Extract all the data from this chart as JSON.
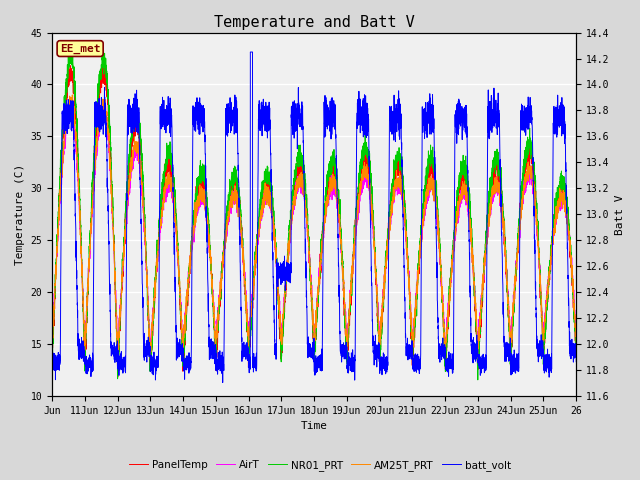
{
  "title": "Temperature and Batt V",
  "xlabel": "Time",
  "ylabel_left": "Temperature (C)",
  "ylabel_right": "Batt V",
  "ylim_left": [
    10,
    45
  ],
  "ylim_right": [
    11.6,
    14.4
  ],
  "x_start": 10,
  "x_end": 26,
  "x_ticks": [
    10,
    11,
    12,
    13,
    14,
    15,
    16,
    17,
    18,
    19,
    20,
    21,
    22,
    23,
    24,
    25,
    26
  ],
  "x_tick_labels": [
    "Jun",
    "11Jun",
    "12Jun",
    "13Jun",
    "14Jun",
    "15Jun",
    "16Jun",
    "17Jun",
    "18Jun",
    "19Jun",
    "20Jun",
    "21Jun",
    "22Jun",
    "23Jun",
    "24Jun",
    "25Jun",
    "26"
  ],
  "station_label": "EE_met",
  "station_label_color": "#800000",
  "station_box_edgecolor": "#800000",
  "station_box_facecolor": "#FFFF99",
  "background_color": "#D8D8D8",
  "plot_bg_color": "#F0F0F0",
  "colors": {
    "PanelTemp": "#FF0000",
    "AirT": "#FF00FF",
    "NR01_PRT": "#00CC00",
    "AM25T_PRT": "#FF8800",
    "batt_volt": "#0000FF"
  },
  "legend_entries": [
    "PanelTemp",
    "AirT",
    "NR01_PRT",
    "AM25T_PRT",
    "batt_volt"
  ],
  "title_fontsize": 11,
  "label_fontsize": 8,
  "tick_fontsize": 7,
  "grid_color": "#FFFFFF",
  "grid_linewidth": 1.0,
  "yticks_left": [
    10,
    15,
    20,
    25,
    30,
    35,
    40,
    45
  ],
  "yticks_right": [
    11.6,
    11.8,
    12.0,
    12.2,
    12.4,
    12.6,
    12.8,
    13.0,
    13.2,
    13.4,
    13.6,
    13.8,
    14.0,
    14.2,
    14.4
  ]
}
